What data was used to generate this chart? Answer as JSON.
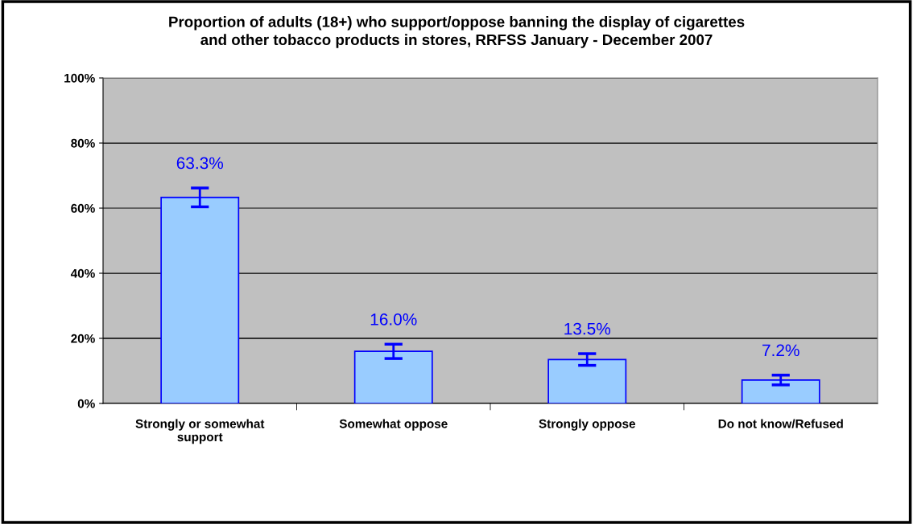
{
  "chart_data": {
    "type": "bar",
    "title": "Proportion of adults (18+) who support/oppose banning the display of cigarettes\nand other tobacco products in stores, RRFSS January - December 2007",
    "categories": [
      "Strongly or somewhat\nsupport",
      "Somewhat oppose",
      "Strongly oppose",
      "Do not know/Refused"
    ],
    "values": [
      63.3,
      16.0,
      13.5,
      7.2
    ],
    "value_labels": [
      "63.3%",
      "16.0%",
      "13.5%",
      "7.2%"
    ],
    "errors": [
      2.9,
      2.2,
      1.8,
      1.5
    ],
    "color": "#99ccff",
    "ylim": [
      0,
      100
    ],
    "yticks": [
      {
        "value": 0,
        "label": "0%"
      },
      {
        "value": 20,
        "label": "20%"
      },
      {
        "value": 40,
        "label": "40%"
      },
      {
        "value": 60,
        "label": "60%"
      },
      {
        "value": 80,
        "label": "80%"
      },
      {
        "value": 100,
        "label": "100%"
      }
    ],
    "grid": "y",
    "legend": false
  }
}
